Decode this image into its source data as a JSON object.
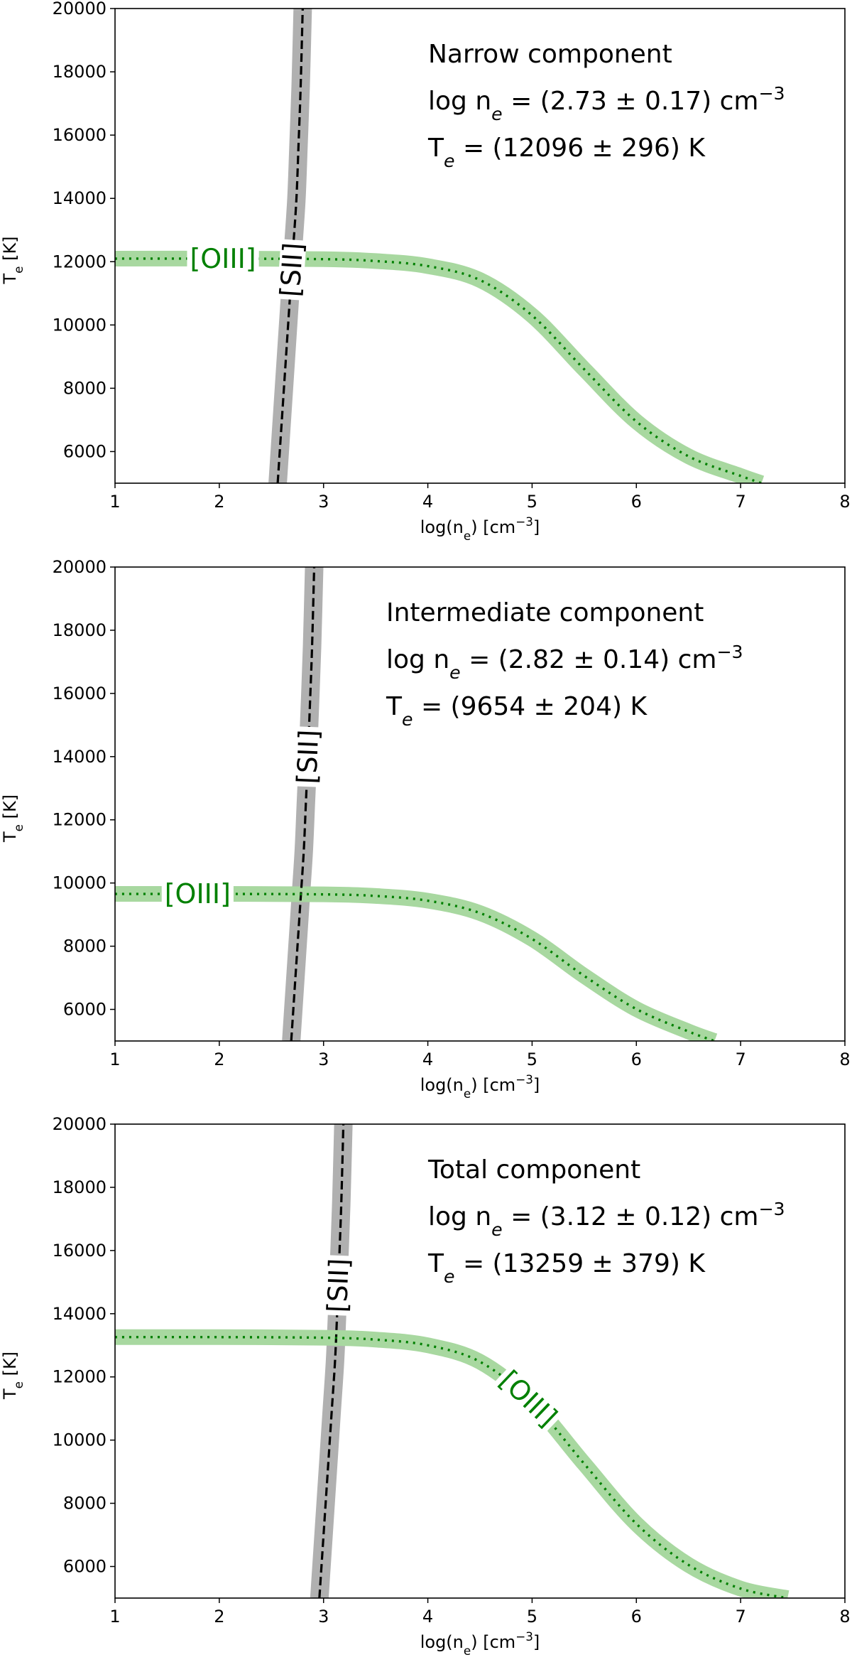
{
  "chart_data": [
    {
      "type": "line",
      "title": "",
      "xlabel": "log(n",
      "xlabel_sub": "e",
      "xlabel_tail": ") [cm",
      "xlabel_sup": "−3",
      "xlabel_end": "]",
      "ylabel": "T",
      "ylabel_sub": "e",
      "ylabel_tail": " [K]",
      "xlim": [
        1,
        8
      ],
      "ylim": [
        5000,
        20000
      ],
      "xticks": [
        "1",
        "2",
        "3",
        "4",
        "5",
        "6",
        "7",
        "8"
      ],
      "yticks": [
        "6000",
        "8000",
        "10000",
        "12000",
        "14000",
        "16000",
        "18000",
        "20000"
      ],
      "annotation": [
        "Narrow component",
        "log n_e = (2.73 ± 0.17) cm^−3",
        "T_e = (12096 ± 296) K"
      ],
      "series": [
        {
          "name": "[SII]",
          "style": "dashed",
          "color": "#000000",
          "band_color": "#b0b0b0",
          "x": [
            2.56,
            2.59,
            2.62,
            2.65,
            2.68,
            2.71,
            2.74,
            2.76,
            2.78,
            2.8
          ],
          "y": [
            5000,
            6500,
            8000,
            9500,
            11000,
            12500,
            14000,
            15700,
            17500,
            20000
          ]
        },
        {
          "name": "[OIII]",
          "style": "dotted",
          "color": "#008000",
          "band_color": "#a8d8a0",
          "x": [
            1.0,
            2.0,
            3.0,
            3.5,
            4.0,
            4.5,
            5.0,
            5.5,
            6.0,
            6.5,
            7.0,
            7.2
          ],
          "y": [
            12096,
            12096,
            12080,
            12020,
            11860,
            11420,
            10300,
            8600,
            6950,
            5850,
            5230,
            5000
          ]
        }
      ]
    },
    {
      "type": "line",
      "title": "",
      "xlabel": "log(n",
      "xlabel_sub": "e",
      "xlabel_tail": ") [cm",
      "xlabel_sup": "−3",
      "xlabel_end": "]",
      "ylabel": "T",
      "ylabel_sub": "e",
      "ylabel_tail": " [K]",
      "xlim": [
        1,
        8
      ],
      "ylim": [
        5000,
        20000
      ],
      "xticks": [
        "1",
        "2",
        "3",
        "4",
        "5",
        "6",
        "7",
        "8"
      ],
      "yticks": [
        "6000",
        "8000",
        "10000",
        "12000",
        "14000",
        "16000",
        "18000",
        "20000"
      ],
      "annotation": [
        "Intermediate component",
        "log n_e = (2.82 ± 0.14) cm^−3",
        "T_e = (9654 ± 204) K"
      ],
      "series": [
        {
          "name": "[SII]",
          "style": "dashed",
          "color": "#000000",
          "band_color": "#b0b0b0",
          "x": [
            2.69,
            2.72,
            2.75,
            2.78,
            2.81,
            2.83,
            2.85,
            2.87,
            2.89,
            2.91
          ],
          "y": [
            5000,
            6500,
            8000,
            9500,
            11000,
            12500,
            14000,
            15700,
            17500,
            20000
          ]
        },
        {
          "name": "[OIII]",
          "style": "dotted",
          "color": "#008000",
          "band_color": "#a8d8a0",
          "x": [
            1.0,
            2.0,
            3.0,
            3.5,
            4.0,
            4.5,
            5.0,
            5.5,
            6.0,
            6.5,
            6.75
          ],
          "y": [
            9654,
            9654,
            9640,
            9590,
            9440,
            9050,
            8230,
            7060,
            6010,
            5300,
            5000
          ]
        }
      ]
    },
    {
      "type": "line",
      "title": "",
      "xlabel": "log(n",
      "xlabel_sub": "e",
      "xlabel_tail": ") [cm",
      "xlabel_sup": "−3",
      "xlabel_end": "]",
      "ylabel": "T",
      "ylabel_sub": "e",
      "ylabel_tail": " [K]",
      "xlim": [
        1,
        8
      ],
      "ylim": [
        5000,
        20000
      ],
      "xticks": [
        "1",
        "2",
        "3",
        "4",
        "5",
        "6",
        "7",
        "8"
      ],
      "yticks": [
        "6000",
        "8000",
        "10000",
        "12000",
        "14000",
        "16000",
        "18000",
        "20000"
      ],
      "annotation": [
        "Total component",
        "log n_e = (3.12 ± 0.12) cm^−3",
        "T_e = (13259 ± 379) K"
      ],
      "series": [
        {
          "name": "[SII]",
          "style": "dashed",
          "color": "#000000",
          "band_color": "#b0b0b0",
          "x": [
            2.96,
            2.99,
            3.02,
            3.05,
            3.08,
            3.11,
            3.13,
            3.15,
            3.17,
            3.19
          ],
          "y": [
            5000,
            6500,
            8000,
            9500,
            11000,
            12500,
            14000,
            15700,
            17500,
            20000
          ]
        },
        {
          "name": "[OIII]",
          "style": "dotted",
          "color": "#008000",
          "band_color": "#a8d8a0",
          "x": [
            1.0,
            2.0,
            3.0,
            3.5,
            4.0,
            4.5,
            5.0,
            5.5,
            6.0,
            6.5,
            7.0,
            7.45
          ],
          "y": [
            13259,
            13259,
            13240,
            13180,
            13000,
            12480,
            11200,
            9250,
            7350,
            6050,
            5300,
            5000
          ]
        }
      ]
    }
  ]
}
